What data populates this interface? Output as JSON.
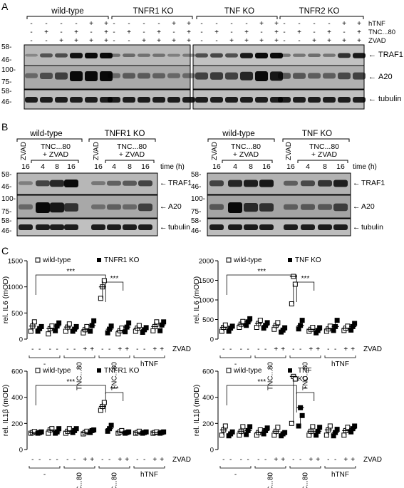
{
  "panel_a": {
    "letter": "A",
    "groups": [
      "wild-type",
      "TNFR1 KO",
      "TNF KO",
      "TNFR2 KO"
    ],
    "row_labels": [
      "hTNF",
      "TNC...80",
      "ZVAD"
    ],
    "signs": [
      [
        "-",
        "-",
        "-",
        "-",
        "+",
        "+"
      ],
      [
        "-",
        "+",
        "-",
        "+",
        "-",
        "+"
      ],
      [
        "-",
        "-",
        "+",
        "+",
        "+",
        "+"
      ]
    ],
    "markers": [
      "58-",
      "46-",
      "100-",
      "75-",
      "58-",
      "46-"
    ],
    "bands": [
      "TRAF1",
      "A20",
      "tubulin"
    ]
  },
  "panel_b": {
    "letter": "B",
    "left_groups": [
      "wild-type",
      "TNFR1 KO"
    ],
    "right_groups": [
      "wild-type",
      "TNF KO"
    ],
    "zvad": "ZVAD",
    "tnc_line1": "TNC...80",
    "tnc_line2": "+ ZVAD",
    "times": [
      "16",
      "4",
      "8",
      "16"
    ],
    "time_label": "time (h)",
    "markers": [
      "58-",
      "46-",
      "100-",
      "75-",
      "58-",
      "46-"
    ],
    "bands": [
      "TRAF1",
      "A20",
      "tubulin"
    ]
  },
  "panel_c": {
    "letter": "C",
    "zvad": "ZVAD",
    "minus": "-",
    "tnc": "TNC...80",
    "htnf": "hTNF",
    "zvad_signs": [
      "-",
      "-",
      "-",
      "+",
      "-",
      "+",
      "-",
      "+"
    ],
    "sig": "***",
    "sig_single": "*"
  },
  "chart_data": [
    {
      "type": "scatter",
      "ylabel": "rel. IL6 (mOD)",
      "ylim": [
        0,
        1500
      ],
      "yticks": [
        0,
        500,
        1000,
        1500
      ],
      "legend": [
        "wild-type",
        "TNFR1 KO"
      ],
      "group_labels": [
        "-",
        "TNC...80",
        "TNC...80",
        "hTNF"
      ],
      "series": [
        {
          "name": "wild-type",
          "values": [
            [
              250,
              150,
              330
            ],
            [
              200,
              100,
              250
            ],
            [
              230,
              150,
              290
            ],
            [
              180,
              120,
              240
            ],
            [
              1000,
              780,
              1120
            ],
            [
              160,
              100,
              210
            ],
            [
              210,
              150,
              260
            ],
            [
              240,
              160,
              330
            ]
          ]
        },
        {
          "name": "TNFR1 KO",
          "values": [
            [
              200,
              150,
              240
            ],
            [
              250,
              160,
              310
            ],
            [
              190,
              150,
              240
            ],
            [
              260,
              150,
              350
            ],
            [
              190,
              120,
              250
            ],
            [
              230,
              140,
              310
            ],
            [
              180,
              130,
              220
            ],
            [
              270,
              160,
              330
            ]
          ]
        }
      ],
      "significance": [
        {
          "from": 0,
          "to": 4,
          "label": "***"
        },
        {
          "from": 4,
          "to": 5,
          "label": "***"
        }
      ]
    },
    {
      "type": "scatter",
      "ylabel": "rel. IL6 (mOD)",
      "ylim": [
        0,
        2000
      ],
      "yticks": [
        0,
        500,
        1000,
        1500,
        2000
      ],
      "legend": [
        "wild-type",
        "TNF KO"
      ],
      "group_labels": [
        "-",
        "TNC...80",
        "TNC...80",
        "hTNF"
      ],
      "series": [
        {
          "name": "wild-type",
          "values": [
            [
              300,
              200,
              360
            ],
            [
              380,
              300,
              450
            ],
            [
              400,
              300,
              480
            ],
            [
              350,
              250,
              420
            ],
            [
              1600,
              900,
              1400
            ],
            [
              250,
              200,
              300
            ],
            [
              260,
              200,
              330
            ],
            [
              280,
              220,
              330
            ]
          ]
        },
        {
          "name": "TNF KO",
          "values": [
            [
              280,
              200,
              330
            ],
            [
              440,
              350,
              520
            ],
            [
              350,
              280,
              420
            ],
            [
              230,
              180,
              290
            ],
            [
              350,
              260,
              480
            ],
            [
              220,
              160,
              290
            ],
            [
              320,
              220,
              480
            ],
            [
              320,
              230,
              400
            ]
          ]
        }
      ],
      "significance": [
        {
          "from": 0,
          "to": 4,
          "label": "***"
        },
        {
          "from": 4,
          "to": 5,
          "label": "***"
        }
      ]
    },
    {
      "type": "scatter",
      "ylabel": "rel. IL1β (mOD)",
      "ylim": [
        0,
        600
      ],
      "yticks": [
        0,
        200,
        400,
        600
      ],
      "legend": [
        "wild-type",
        "TNFR1 KO"
      ],
      "group_labels": [
        "-",
        "TNC...80",
        "TNC...80",
        "hTNF"
      ],
      "series": [
        {
          "name": "wild-type",
          "values": [
            [
              130,
              125,
              138
            ],
            [
              150,
              125,
              160
            ],
            [
              140,
              125,
              160
            ],
            [
              130,
              120,
              140
            ],
            [
              330,
              300,
              360
            ],
            [
              135,
              125,
              145
            ],
            [
              130,
              125,
              140
            ],
            [
              130,
              125,
              135
            ]
          ]
        },
        {
          "name": "TNFR1 KO",
          "values": [
            [
              130,
              125,
              135
            ],
            [
              135,
              125,
              160
            ],
            [
              145,
              130,
              160
            ],
            [
              145,
              130,
              150
            ],
            [
              160,
              140,
              185
            ],
            [
              130,
              125,
              135
            ],
            [
              130,
              125,
              135
            ],
            [
              130,
              125,
              135
            ]
          ]
        }
      ],
      "significance": [
        {
          "from": 0,
          "to": 4,
          "label": "***"
        },
        {
          "from": 4,
          "to": 5,
          "label": "***"
        }
      ]
    },
    {
      "type": "scatter",
      "ylabel": "rel. IL1β (mOD)",
      "ylim": [
        0,
        600
      ],
      "yticks": [
        0,
        200,
        400,
        600
      ],
      "legend": [
        "wild-type",
        "TNF KO"
      ],
      "group_labels": [
        "-",
        "TNC...80",
        "TNC...80",
        "hTNF"
      ],
      "series": [
        {
          "name": "wild-type",
          "values": [
            [
              150,
              110,
              180
            ],
            [
              140,
              110,
              175
            ],
            [
              130,
              110,
              150
            ],
            [
              140,
              110,
              170
            ],
            [
              560,
              200,
              540
            ],
            [
              140,
              110,
              175
            ],
            [
              150,
              110,
              180
            ],
            [
              145,
              110,
              170
            ]
          ]
        },
        {
          "name": "TNF KO",
          "values": [
            [
              120,
              105,
              135
            ],
            [
              145,
              115,
              175
            ],
            [
              145,
              120,
              165
            ],
            [
              120,
              105,
              130
            ],
            [
              320,
              180,
              260
            ],
            [
              140,
              110,
              170
            ],
            [
              130,
              105,
              155
            ],
            [
              160,
              135,
              180
            ]
          ]
        }
      ],
      "significance": [
        {
          "from": 0,
          "to": 4,
          "label": "***"
        },
        {
          "from": 4,
          "to": 5,
          "label": "*"
        }
      ]
    }
  ]
}
